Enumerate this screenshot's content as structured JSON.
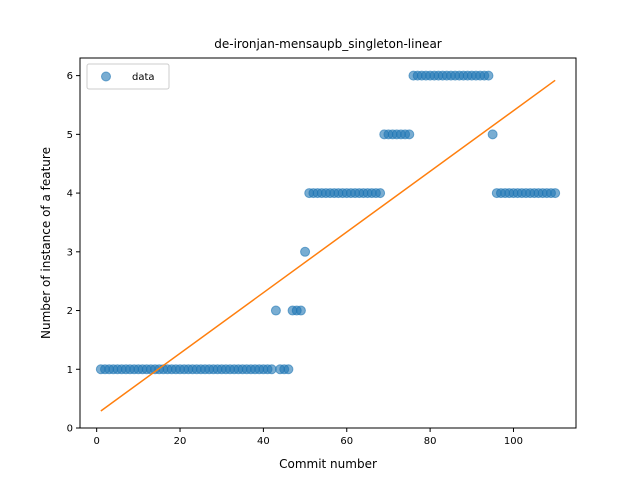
{
  "chart_data": {
    "type": "scatter",
    "title": "de-ironjan-mensaupb_singleton-linear",
    "xlabel": "Commit number",
    "ylabel": "Number of instance of a feature",
    "xlim": [
      -4,
      115
    ],
    "ylim": [
      0,
      6.3
    ],
    "xticks": [
      0,
      20,
      40,
      60,
      80,
      100
    ],
    "yticks": [
      0,
      1,
      2,
      3,
      4,
      5,
      6
    ],
    "legend_position": "upper-left",
    "grid": false,
    "series": [
      {
        "name": "data",
        "kind": "scatter",
        "color": "#1f77b4",
        "x": [
          1,
          2,
          3,
          4,
          5,
          6,
          7,
          8,
          9,
          10,
          11,
          12,
          13,
          14,
          15,
          16,
          17,
          18,
          19,
          20,
          21,
          22,
          23,
          24,
          25,
          26,
          27,
          28,
          29,
          30,
          31,
          32,
          33,
          34,
          35,
          36,
          37,
          38,
          39,
          40,
          41,
          42,
          43,
          44,
          45,
          46,
          47,
          48,
          49,
          50,
          51,
          52,
          53,
          54,
          55,
          56,
          57,
          58,
          59,
          60,
          61,
          62,
          63,
          64,
          65,
          66,
          67,
          68,
          69,
          70,
          71,
          72,
          73,
          74,
          75,
          76,
          77,
          78,
          79,
          80,
          81,
          82,
          83,
          84,
          85,
          86,
          87,
          88,
          89,
          90,
          91,
          92,
          93,
          94,
          95,
          96,
          97,
          98,
          99,
          100,
          101,
          102,
          103,
          104,
          105,
          106,
          107,
          108,
          109,
          110
        ],
        "y": [
          1,
          1,
          1,
          1,
          1,
          1,
          1,
          1,
          1,
          1,
          1,
          1,
          1,
          1,
          1,
          1,
          1,
          1,
          1,
          1,
          1,
          1,
          1,
          1,
          1,
          1,
          1,
          1,
          1,
          1,
          1,
          1,
          1,
          1,
          1,
          1,
          1,
          1,
          1,
          1,
          1,
          1,
          2,
          1,
          1,
          1,
          2,
          2,
          2,
          3,
          4,
          4,
          4,
          4,
          4,
          4,
          4,
          4,
          4,
          4,
          4,
          4,
          4,
          4,
          4,
          4,
          4,
          4,
          5,
          5,
          5,
          5,
          5,
          5,
          5,
          6,
          6,
          6,
          6,
          6,
          6,
          6,
          6,
          6,
          6,
          6,
          6,
          6,
          6,
          6,
          6,
          6,
          6,
          6,
          5,
          4,
          4,
          4,
          4,
          4,
          4,
          4,
          4,
          4,
          4,
          4,
          4,
          4,
          4,
          4
        ]
      },
      {
        "kind": "line",
        "color": "#ff7f0e",
        "x": [
          1,
          110
        ],
        "y": [
          0.29,
          5.92
        ]
      }
    ]
  }
}
